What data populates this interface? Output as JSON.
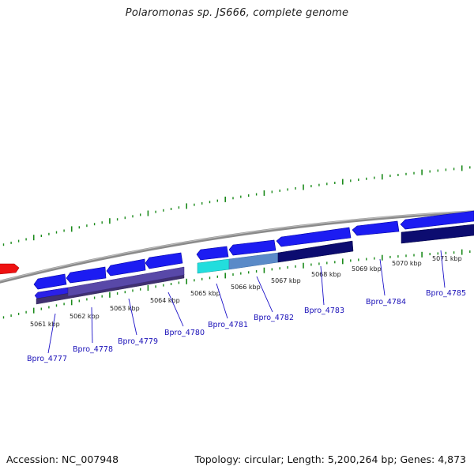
{
  "title": "Polaromonas sp. JS666, complete genome",
  "footer": {
    "accession_label": "Accession:",
    "accession": "NC_007948",
    "topology_label": "Topology:",
    "topology": "circular",
    "length_label": "Length:",
    "length": "5,200,264 bp",
    "genes_label": "Genes:",
    "genes": "4,873"
  },
  "ticks": [
    {
      "label": "5061 kbp"
    },
    {
      "label": "5062 kbp"
    },
    {
      "label": "5063 kbp"
    },
    {
      "label": "5064 kbp"
    },
    {
      "label": "5065 kbp"
    },
    {
      "label": "5066 kbp"
    },
    {
      "label": "5067 kbp"
    },
    {
      "label": "5068 kbp"
    },
    {
      "label": "5069 kbp"
    },
    {
      "label": "5070 kbp"
    },
    {
      "label": "5071 kbp"
    }
  ],
  "gene_labels": [
    {
      "name": "Bpro_4777"
    },
    {
      "name": "Bpro_4778"
    },
    {
      "name": "Bpro_4779"
    },
    {
      "name": "Bpro_4780"
    },
    {
      "name": "Bpro_4781"
    },
    {
      "name": "Bpro_4782"
    },
    {
      "name": "Bpro_4783"
    },
    {
      "name": "Bpro_4784"
    },
    {
      "name": "Bpro_4785"
    }
  ],
  "colors": {
    "forward_gene": "#1a1af0",
    "reverse_gene_red": "#ee1111",
    "highlight_cyan": "#22dddd",
    "highlight_steel": "#5a8ac8",
    "dark_navy": "#0a0a6a",
    "purple_band": "#5a4aa0",
    "backbone": "#888888",
    "tick_green": "#1a8a1a",
    "label_blue": "#1a10b8"
  }
}
